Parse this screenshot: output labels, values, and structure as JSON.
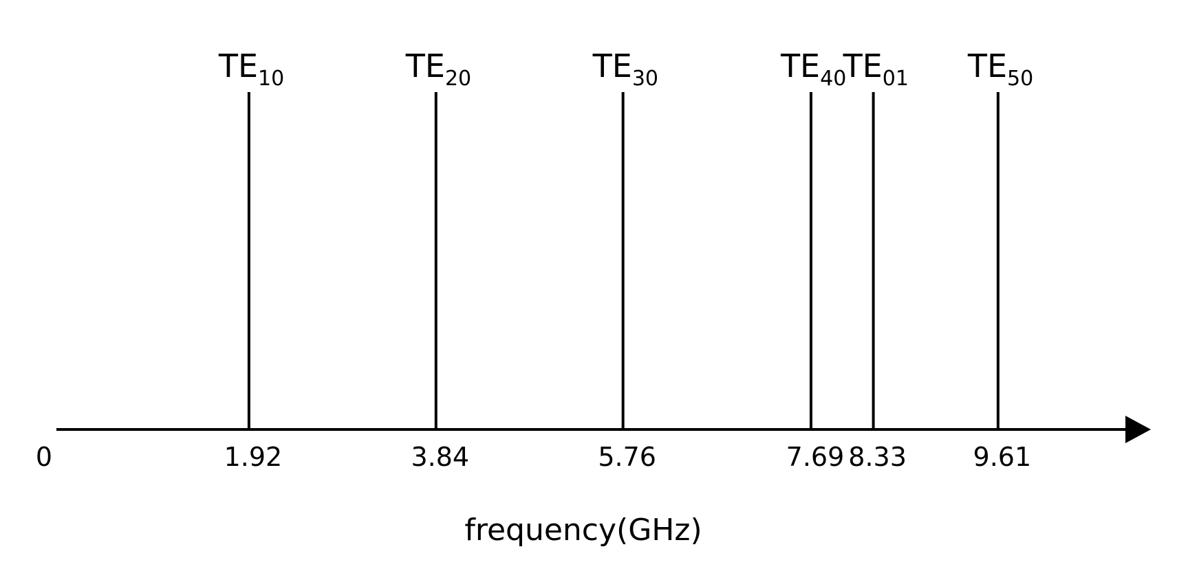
{
  "chart_data": {
    "type": "stem",
    "modes": [
      {
        "label": "TE",
        "subscript": "10"
      },
      {
        "label": "TE",
        "subscript": "20"
      },
      {
        "label": "TE",
        "subscript": "30"
      },
      {
        "label": "TE",
        "subscript": "40"
      },
      {
        "label": "TE",
        "subscript": "01"
      },
      {
        "label": "TE",
        "subscript": "50"
      }
    ],
    "values": [
      1.92,
      3.84,
      5.76,
      7.69,
      8.33,
      9.61
    ],
    "xlim": [
      0,
      11.2
    ],
    "xticks": [
      0
    ],
    "x_label": "frequency(GHz)",
    "color": "#000000"
  }
}
